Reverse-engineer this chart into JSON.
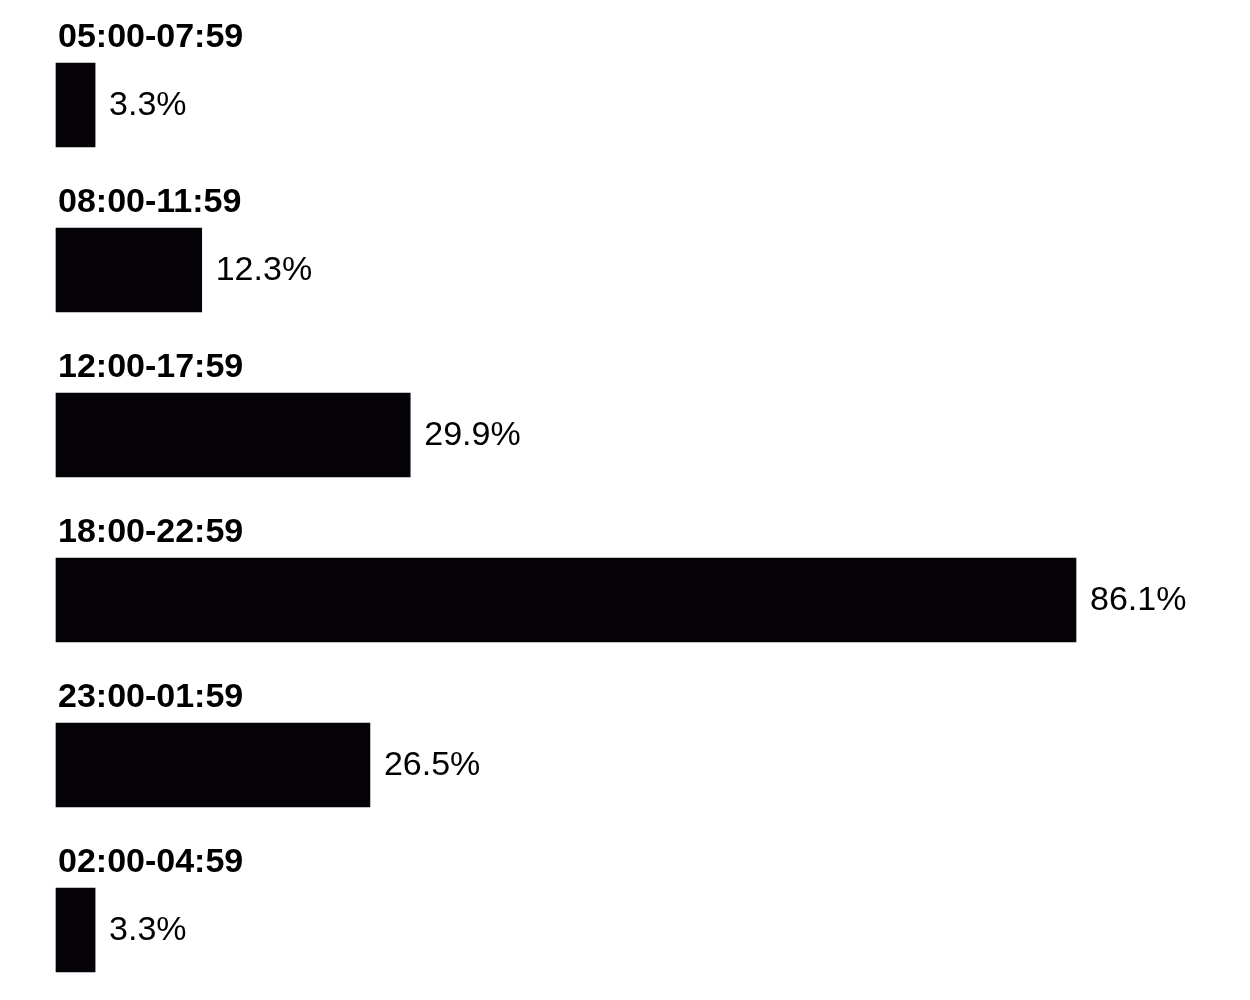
{
  "chart_data": {
    "type": "bar",
    "orientation": "horizontal",
    "categories": [
      "05:00-07:59",
      "08:00-11:59",
      "12:00-17:59",
      "18:00-22:59",
      "23:00-01:59",
      "02:00-04:59"
    ],
    "values": [
      3.3,
      12.3,
      29.9,
      86.1,
      26.5,
      3.3
    ],
    "value_labels": [
      "3.3%",
      "12.3%",
      "29.9%",
      "86.1%",
      "26.5%",
      "3.3%"
    ],
    "color": "#050308"
  }
}
